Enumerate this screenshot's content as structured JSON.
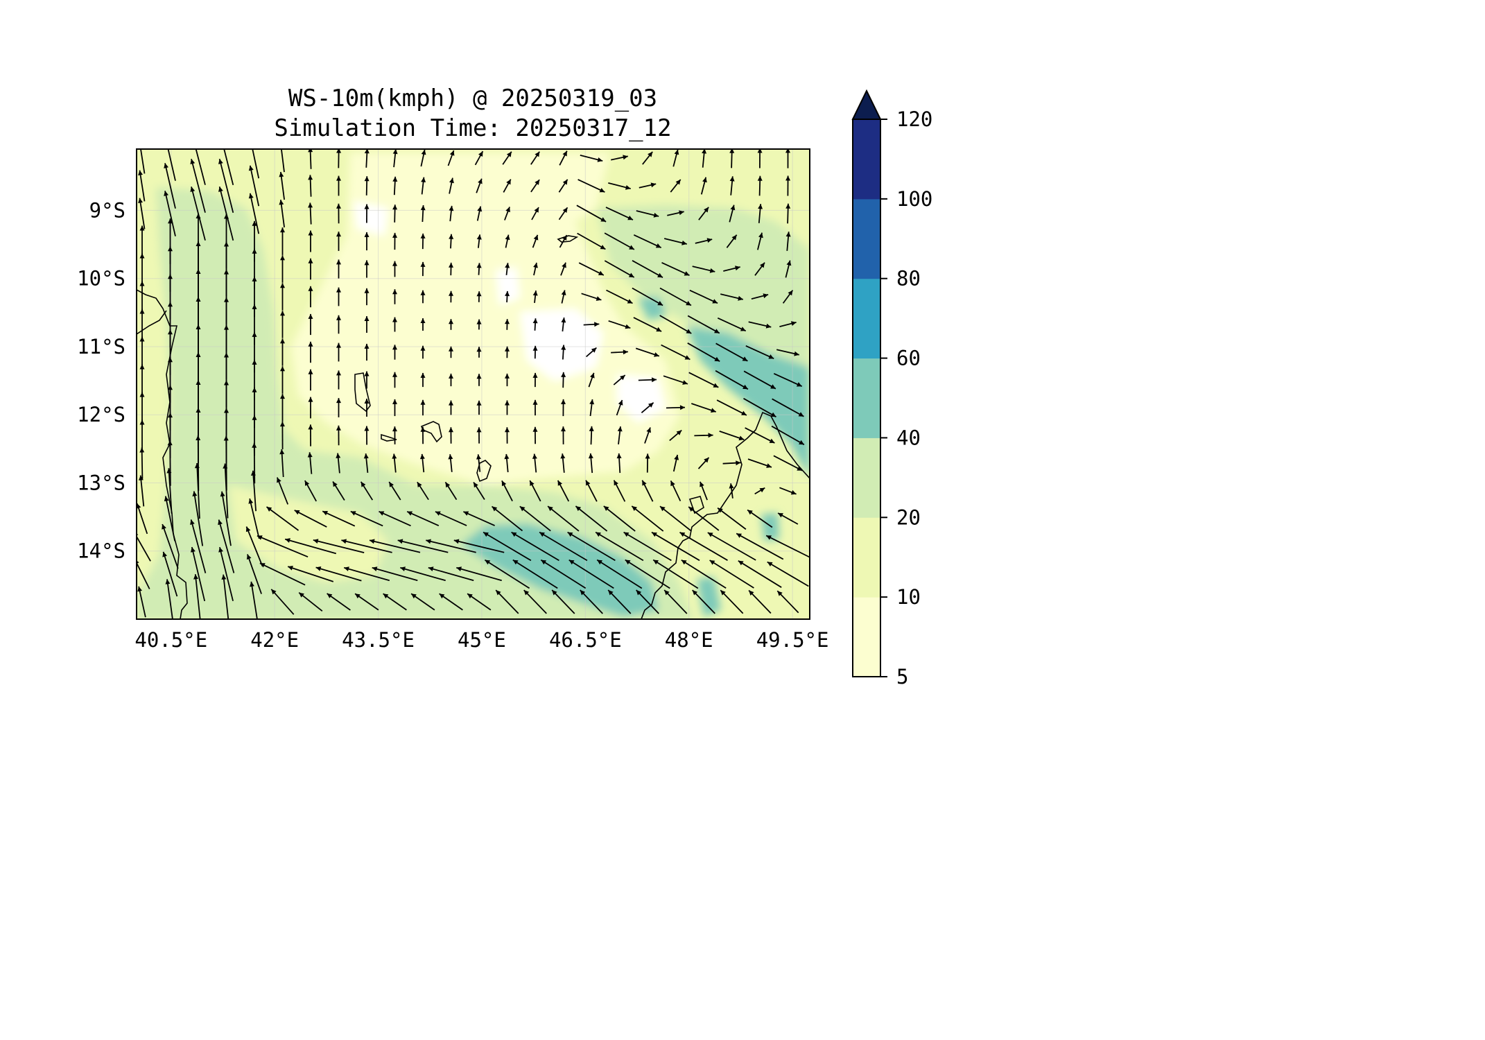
{
  "title": {
    "line1": "WS-10m(kmph) @ 20250319_03",
    "line2": "Simulation Time: 20250317_12"
  },
  "map": {
    "lon_range": [
      40.0,
      49.75
    ],
    "lat_range": [
      -15.0,
      -8.1
    ],
    "x_ticks": [
      {
        "value": 40.5,
        "label": "40.5°E"
      },
      {
        "value": 42.0,
        "label": "42°E"
      },
      {
        "value": 43.5,
        "label": "43.5°E"
      },
      {
        "value": 45.0,
        "label": "45°E"
      },
      {
        "value": 46.5,
        "label": "46.5°E"
      },
      {
        "value": 48.0,
        "label": "48°E"
      },
      {
        "value": 49.5,
        "label": "49.5°E"
      }
    ],
    "y_ticks": [
      {
        "value": -9,
        "label": "9°S"
      },
      {
        "value": -10,
        "label": "10°S"
      },
      {
        "value": -11,
        "label": "11°S"
      },
      {
        "value": -12,
        "label": "12°S"
      },
      {
        "value": -13,
        "label": "13°S"
      },
      {
        "value": -14,
        "label": "14°S"
      }
    ],
    "gridlines": true,
    "variable": "10 m wind speed (km/h) filled contours with wind vectors"
  },
  "colorbar": {
    "levels": [
      {
        "label": "5",
        "value": 5
      },
      {
        "label": "10",
        "value": 10
      },
      {
        "label": "20",
        "value": 20
      },
      {
        "label": "40",
        "value": 40
      },
      {
        "label": "60",
        "value": 60
      },
      {
        "label": "80",
        "value": 80
      },
      {
        "label": "100",
        "value": 100
      },
      {
        "label": "120",
        "value": 120
      }
    ],
    "colors": [
      "#fcfed0",
      "#eef8b4",
      "#d1ecb4",
      "#7ecab9",
      "#2fa2c4",
      "#2162ab",
      "#1d2d83",
      "#0c1d4f"
    ],
    "extend": "max"
  },
  "colors": {
    "very_light": "#fcfed0",
    "light": "#eef8b4",
    "mid_green": "#d1ecb4",
    "teal": "#7ecab9",
    "coast": "#000000",
    "arrow": "#000000"
  }
}
